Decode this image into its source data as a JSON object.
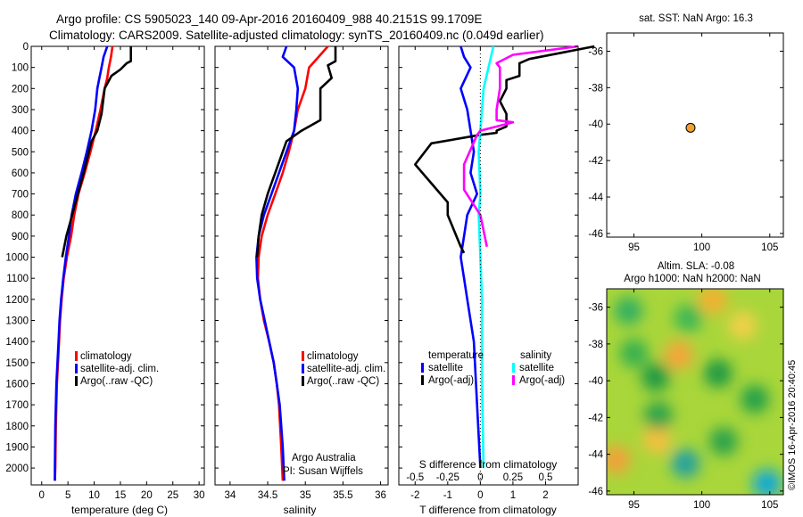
{
  "header": {
    "line1": "Argo profile: CS 5905023_140 09-Apr-2016 20160409_988 40.2151S 99.1709E",
    "line2": "Climatology: CARS2009. Satellite-adjusted climatology: synTS_20160409.nc (0.049d earlier)"
  },
  "side_text": "©IMOS 16-Apr-2016 20:40:45",
  "chart_data": [
    {
      "id": "temperature-profile",
      "type": "line",
      "xlabel": "temperature (deg C)",
      "ylabel": "",
      "xlim": [
        -2,
        31
      ],
      "ylim": [
        2080,
        0
      ],
      "xticks": [
        0,
        5,
        10,
        15,
        20,
        25,
        30
      ],
      "yticks": [
        0,
        100,
        200,
        300,
        400,
        500,
        600,
        700,
        800,
        900,
        1000,
        1100,
        1200,
        1300,
        1400,
        1500,
        1600,
        1700,
        1800,
        1900,
        2000
      ],
      "legend": [
        "climatology",
        "satellite-adj. clim.",
        "Argo(..raw -QC)"
      ],
      "legend_position": "lower-right",
      "series": [
        {
          "name": "climatology",
          "color": "#ff0000",
          "x": [
            13.5,
            13.2,
            12.8,
            12.5,
            12.0,
            11.2,
            10.3,
            9.3,
            8.2,
            7.0,
            6.2,
            5.6,
            4.8,
            4.2,
            3.8,
            3.5,
            3.3,
            3.1,
            2.9,
            2.7,
            2.6,
            2.5
          ],
          "y": [
            0,
            50,
            100,
            150,
            200,
            300,
            400,
            500,
            600,
            700,
            800,
            900,
            1000,
            1100,
            1200,
            1300,
            1400,
            1500,
            1600,
            1800,
            2000,
            2060
          ]
        },
        {
          "name": "satellite-adj. clim.",
          "color": "#0000ff",
          "x": [
            12.5,
            11.8,
            11.4,
            11.0,
            10.6,
            10.2,
            9.5,
            8.6,
            7.6,
            6.5,
            5.7,
            5.2,
            4.6,
            4.1,
            3.7,
            3.4,
            3.2,
            3.0,
            2.8,
            2.6,
            2.5,
            2.5
          ],
          "y": [
            0,
            50,
            100,
            150,
            200,
            300,
            400,
            500,
            600,
            700,
            800,
            900,
            1000,
            1100,
            1200,
            1300,
            1400,
            1500,
            1600,
            1800,
            2000,
            2060
          ]
        },
        {
          "name": "Argo(..raw -QC)",
          "color": "#000000",
          "x": [
            17.0,
            17.0,
            16.2,
            15.0,
            13.3,
            12.0,
            11.4,
            10.6,
            9.5,
            8.0,
            6.9,
            5.8,
            4.7,
            3.9
          ],
          "y": [
            0,
            70,
            80,
            110,
            140,
            200,
            320,
            400,
            450,
            600,
            700,
            800,
            900,
            1000
          ]
        }
      ]
    },
    {
      "id": "salinity-profile",
      "type": "line",
      "xlabel": "salinity",
      "ylabel": "",
      "xlim": [
        33.8,
        36.1
      ],
      "ylim": [
        2080,
        0
      ],
      "xticks": [
        34,
        34.5,
        35,
        35.5,
        36
      ],
      "legend": [
        "climatology",
        "satellite-adj. clim.",
        "Argo(..raw -QC)"
      ],
      "legend_position": "lower-right",
      "annotations": [
        "Argo Australia",
        "PI: Susan Wijffels"
      ],
      "series": [
        {
          "name": "climatology",
          "color": "#ff0000",
          "x": [
            35.3,
            35.15,
            35.05,
            35.0,
            34.9,
            34.85,
            34.78,
            34.7,
            34.6,
            34.5,
            34.42,
            34.38,
            34.37,
            34.4,
            34.45,
            34.52,
            34.58,
            34.62,
            34.65,
            34.68,
            34.7
          ],
          "y": [
            0,
            60,
            100,
            200,
            300,
            400,
            500,
            600,
            700,
            800,
            900,
            1000,
            1100,
            1200,
            1300,
            1400,
            1500,
            1600,
            1700,
            1900,
            2060
          ]
        },
        {
          "name": "satellite-adj. clim.",
          "color": "#0000ff",
          "x": [
            34.75,
            34.7,
            34.85,
            34.9,
            34.88,
            34.85,
            34.75,
            34.65,
            34.55,
            34.45,
            34.38,
            34.35,
            34.36,
            34.4,
            34.46,
            34.52,
            34.58,
            34.62,
            34.66,
            34.7,
            34.72
          ],
          "y": [
            0,
            50,
            100,
            200,
            300,
            400,
            500,
            600,
            700,
            800,
            900,
            1000,
            1100,
            1200,
            1300,
            1400,
            1500,
            1600,
            1700,
            1900,
            2060
          ]
        },
        {
          "name": "Argo(..raw -QC)",
          "color": "#000000",
          "x": [
            35.4,
            35.4,
            35.3,
            35.35,
            35.2,
            35.2,
            35.1,
            34.95,
            34.75,
            34.65,
            34.5,
            34.42,
            34.38,
            34.36
          ],
          "y": [
            0,
            70,
            90,
            150,
            200,
            350,
            370,
            400,
            450,
            550,
            700,
            800,
            900,
            1000
          ]
        }
      ]
    },
    {
      "id": "difference-profile",
      "type": "line",
      "xlabel": "T difference from climatology",
      "xlabel_top": "S difference from climatology",
      "ylabel": "",
      "xlim": [
        -2.5,
        3
      ],
      "ylim": [
        2080,
        0
      ],
      "xticks": [
        -2,
        -1,
        0,
        1,
        2
      ],
      "xticks_s": [
        "-0.5",
        "-0.25",
        "0",
        "0.25",
        "0.5"
      ],
      "legend": [
        "temperature",
        "satellite",
        "Argo(-adj)",
        "salinity",
        "satellite",
        "Argo(-adj)"
      ],
      "legend_position": "lower-center",
      "series": [
        {
          "name": "temperature satellite",
          "color": "#0000ff",
          "x": [
            -0.6,
            -0.5,
            -0.3,
            -0.6,
            -0.4,
            -0.3,
            -0.2,
            -0.3,
            -0.1,
            -0.4,
            -0.5,
            -0.6,
            -0.5,
            -0.4,
            -0.2,
            -0.1,
            0
          ],
          "y": [
            0,
            50,
            100,
            200,
            300,
            400,
            500,
            600,
            700,
            800,
            900,
            1000,
            1100,
            1200,
            1400,
            1700,
            2000
          ]
        },
        {
          "name": "temperature Argo(-adj)",
          "color": "#000000",
          "x": [
            3.5,
            1.5,
            1.2,
            1.2,
            0.8,
            0.8,
            0.6,
            0.8,
            0.8,
            0.5,
            0.5,
            0,
            -1.5,
            -2.0,
            -1.0,
            -1.0,
            -0.6,
            -0.5
          ],
          "y": [
            0,
            60,
            80,
            140,
            160,
            200,
            260,
            320,
            380,
            400,
            410,
            420,
            460,
            560,
            740,
            800,
            950,
            980
          ]
        },
        {
          "name": "salinity satellite",
          "color": "#00ffff",
          "x": [
            0.4,
            0.25,
            0.1,
            0.05,
            0,
            -0.05,
            0,
            -0.05,
            0,
            0.05,
            0.05,
            0.1
          ],
          "y": [
            0,
            100,
            200,
            300,
            400,
            500,
            700,
            800,
            1000,
            1200,
            1600,
            2000
          ]
        },
        {
          "name": "salinity Argo(-adj)",
          "color": "#ff00ff",
          "x": [
            3.0,
            1.0,
            0.5,
            0.6,
            0.6,
            0.5,
            0.5,
            1.0,
            0,
            -0.1,
            -0.5,
            -0.5,
            0,
            0.2
          ],
          "y": [
            0,
            40,
            80,
            100,
            200,
            300,
            350,
            360,
            400,
            420,
            560,
            680,
            800,
            950
          ]
        }
      ]
    },
    {
      "id": "sst-position-map",
      "type": "scatter",
      "title": "sat. SST: NaN Argo: 16.3",
      "xlim": [
        93,
        106
      ],
      "ylim": [
        -46.2,
        -35
      ],
      "xticks": [
        95,
        100,
        105
      ],
      "yticks": [
        -36,
        -38,
        -40,
        -42,
        -44,
        -46
      ],
      "points": [
        {
          "x": 99.17,
          "y": -40.2,
          "color": "#f0a030"
        }
      ]
    },
    {
      "id": "sla-map",
      "type": "heatmap",
      "title_line1": "Altim. SLA: -0.08",
      "title_line2": "Argo h1000: NaN h2000: NaN",
      "xlim": [
        93,
        106
      ],
      "ylim": [
        -46.2,
        -35
      ],
      "xticks": [
        95,
        100,
        105
      ],
      "yticks": [
        -36,
        -38,
        -40,
        -42,
        -44,
        -46
      ],
      "blobs": [
        {
          "x": 98.3,
          "y": -38.6,
          "color": "#f7a43a"
        },
        {
          "x": 100.8,
          "y": -35.6,
          "color": "#f4b030"
        },
        {
          "x": 93.7,
          "y": -44.3,
          "color": "#f3a03a"
        },
        {
          "x": 96.7,
          "y": -43.2,
          "color": "#f6c040"
        },
        {
          "x": 103.0,
          "y": -37.0,
          "color": "#f2d04a"
        },
        {
          "x": 104.8,
          "y": -45.6,
          "color": "#0aa8d8"
        },
        {
          "x": 98.8,
          "y": -44.5,
          "color": "#20a0a0"
        },
        {
          "x": 94.6,
          "y": -36.2,
          "color": "#30b060"
        },
        {
          "x": 96.6,
          "y": -39.8,
          "color": "#1e9a44"
        },
        {
          "x": 101.2,
          "y": -39.6,
          "color": "#1e9a44"
        },
        {
          "x": 103.9,
          "y": -41.0,
          "color": "#22a04a"
        },
        {
          "x": 96.8,
          "y": -41.9,
          "color": "#2aa24c"
        },
        {
          "x": 101.6,
          "y": -43.3,
          "color": "#2aa24c"
        },
        {
          "x": 99.0,
          "y": -36.6,
          "color": "#3cb854"
        },
        {
          "x": 95.0,
          "y": -38.5,
          "color": "#34b050"
        }
      ]
    }
  ]
}
